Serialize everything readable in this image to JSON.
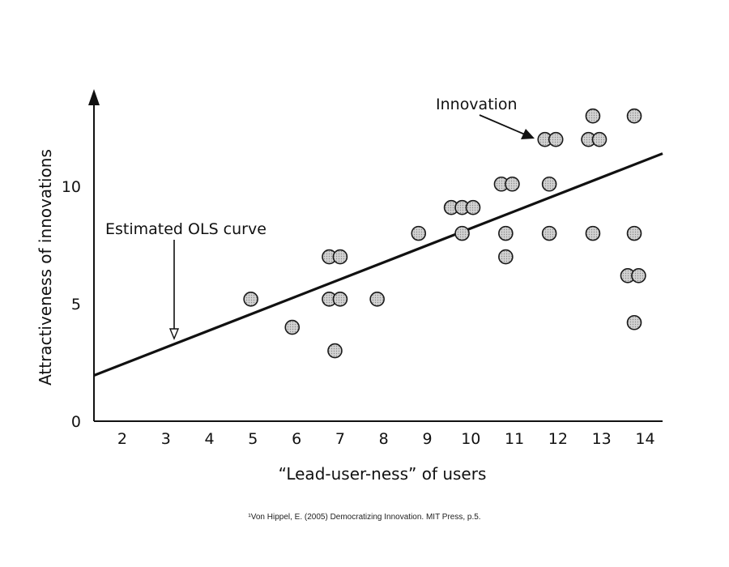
{
  "chart_data": {
    "type": "scatter",
    "xlabel": "“Lead-user-ness” of users",
    "ylabel": "Attractiveness of innovations",
    "xlim": [
      1.35,
      14.4
    ],
    "ylim": [
      0,
      13.8
    ],
    "x_ticks": [
      "2",
      "3",
      "4",
      "5",
      "6",
      "7",
      "8",
      "9",
      "10",
      "11",
      "12",
      "13",
      "14"
    ],
    "y_ticks": [
      "0",
      "5",
      "10"
    ],
    "points": [
      {
        "x": 4.95,
        "y": 5.2
      },
      {
        "x": 5.9,
        "y": 4.0
      },
      {
        "x": 6.75,
        "y": 7.0
      },
      {
        "x": 7.0,
        "y": 7.0
      },
      {
        "x": 6.75,
        "y": 5.2
      },
      {
        "x": 7.0,
        "y": 5.2
      },
      {
        "x": 6.88,
        "y": 3.0
      },
      {
        "x": 7.85,
        "y": 5.2
      },
      {
        "x": 8.8,
        "y": 8.0
      },
      {
        "x": 9.55,
        "y": 9.1
      },
      {
        "x": 9.8,
        "y": 9.1
      },
      {
        "x": 10.05,
        "y": 9.1
      },
      {
        "x": 9.8,
        "y": 8.0
      },
      {
        "x": 10.7,
        "y": 10.1
      },
      {
        "x": 10.95,
        "y": 10.1
      },
      {
        "x": 10.8,
        "y": 8.0
      },
      {
        "x": 10.8,
        "y": 7.0
      },
      {
        "x": 11.7,
        "y": 12.0
      },
      {
        "x": 11.95,
        "y": 12.0
      },
      {
        "x": 11.8,
        "y": 10.1
      },
      {
        "x": 11.8,
        "y": 8.0
      },
      {
        "x": 12.7,
        "y": 12.0
      },
      {
        "x": 12.95,
        "y": 12.0
      },
      {
        "x": 12.8,
        "y": 13.0
      },
      {
        "x": 12.8,
        "y": 8.0
      },
      {
        "x": 13.75,
        "y": 13.0
      },
      {
        "x": 13.75,
        "y": 8.0
      },
      {
        "x": 13.6,
        "y": 6.2
      },
      {
        "x": 13.85,
        "y": 6.2
      },
      {
        "x": 13.75,
        "y": 4.2
      }
    ],
    "ols_line": {
      "x": [
        1.35,
        14.4
      ],
      "y": [
        1.95,
        11.4
      ]
    },
    "annotations": {
      "ols": "Estimated OLS curve",
      "innovation": "Innovation"
    },
    "grid": false,
    "legend": "none"
  },
  "source_note": "¹Von Hippel, E. (2005) Democratizing Innovation. MIT Press, p.5.",
  "colors": {
    "marker_fill": "#c8c8c8",
    "marker_stroke": "#1a1a1a",
    "line": "#111111",
    "text": "#111111"
  }
}
